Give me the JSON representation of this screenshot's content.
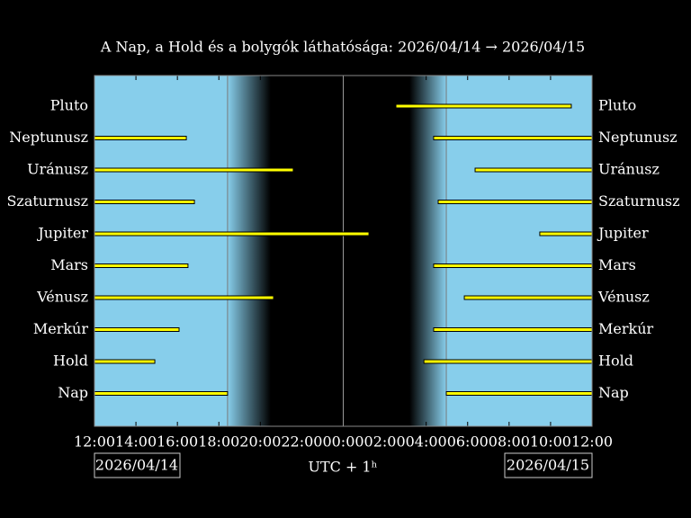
{
  "chart_data": {
    "type": "timeline",
    "title": "A Nap, a Hold és a bolygók láthatósága: 2026/04/14 → 2026/04/15",
    "xlabel": "UTC + 1ʰ",
    "date_start": "2026/04/14",
    "date_end": "2026/04/15",
    "categories": [
      "Nap",
      "Hold",
      "Merkúr",
      "Vénusz",
      "Mars",
      "Jupiter",
      "Szaturnusz",
      "Uránusz",
      "Neptunusz",
      "Pluto"
    ],
    "intervals": [
      [
        [
          12,
          18.42
        ],
        [
          28.97,
          36
        ]
      ],
      [
        [
          12,
          14.91
        ],
        [
          27.89,
          36
        ]
      ],
      [
        [
          12,
          16.08
        ],
        [
          28.36,
          36
        ]
      ],
      [
        [
          12,
          20.64
        ],
        [
          29.84,
          36
        ]
      ],
      [
        [
          12,
          16.51
        ],
        [
          28.36,
          36
        ]
      ],
      [
        [
          12,
          25.24
        ],
        [
          33.48,
          36
        ]
      ],
      [
        [
          12,
          16.82
        ],
        [
          28.58,
          36
        ]
      ],
      [
        [
          12,
          21.59
        ],
        [
          30.36,
          36
        ]
      ],
      [
        [
          12,
          16.43
        ],
        [
          28.36,
          36
        ]
      ],
      [
        [
          26.54,
          35.0
        ]
      ]
    ],
    "color": "#ffff00",
    "sky_color": "#87ceeb",
    "night": {
      "sunset": 18.42,
      "dark_start": 20.5,
      "dark_end": 27.2,
      "sunrise": 28.97
    },
    "xlim": [
      12,
      36
    ],
    "xticks": [
      {
        "value": 12,
        "label": "12:00"
      },
      {
        "value": 14,
        "label": "14:00"
      },
      {
        "value": 16,
        "label": "16:00"
      },
      {
        "value": 18,
        "label": "18:00"
      },
      {
        "value": 20,
        "label": "20:00"
      },
      {
        "value": 22,
        "label": "22:00"
      },
      {
        "value": 24,
        "label": "00:00"
      },
      {
        "value": 26,
        "label": "02:00"
      },
      {
        "value": 28,
        "label": "04:00"
      },
      {
        "value": 30,
        "label": "06:00"
      },
      {
        "value": 32,
        "label": "08:00"
      },
      {
        "value": 34,
        "label": "10:00"
      },
      {
        "value": 36,
        "label": "12:00"
      }
    ]
  }
}
